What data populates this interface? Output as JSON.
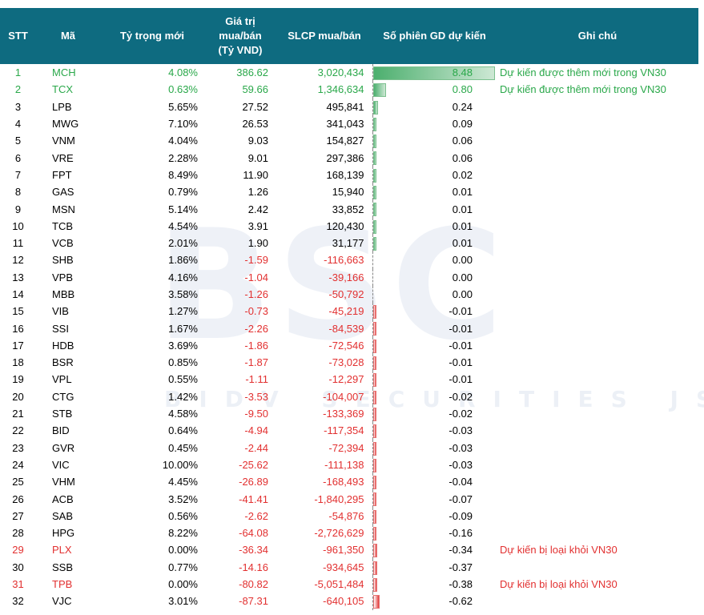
{
  "watermark": {
    "logo": "BSC",
    "sub": "BIDV SECURITIES JSC"
  },
  "headers": {
    "stt": "STT",
    "ma": "Mã",
    "ty_trong": "Tỷ trọng mới",
    "gia_tri_1": "Giá trị",
    "gia_tri_2": "mua/bán",
    "gia_tri_3": "(Tỷ VND)",
    "slcp": "SLCP mua/bán",
    "so_phien": "Số phiên GD dự kiến",
    "ghi_chu": "Ghi chú"
  },
  "colors": {
    "header_bg": "#0e6b80",
    "added": "#2aa84a",
    "removed": "#e23030",
    "positive_bar": "#4caf6e",
    "negative_bar": "#e23b3b"
  },
  "rows": [
    {
      "stt": "1",
      "ma": "MCH",
      "ty_trong": "4.08%",
      "gia_tri": "386.62",
      "slcp": "3,020,434",
      "so_phien": "8.48",
      "so_phien_num": 8.48,
      "ghi_chu": "Dự kiến được thêm mới trong VN30",
      "status": "added"
    },
    {
      "stt": "2",
      "ma": "TCX",
      "ty_trong": "0.63%",
      "gia_tri": "59.66",
      "slcp": "1,346,634",
      "so_phien": "0.80",
      "so_phien_num": 0.8,
      "ghi_chu": "Dự kiến được thêm mới trong VN30",
      "status": "added"
    },
    {
      "stt": "3",
      "ma": "LPB",
      "ty_trong": "5.65%",
      "gia_tri": "27.52",
      "slcp": "495,841",
      "so_phien": "0.24",
      "so_phien_num": 0.24,
      "ghi_chu": "",
      "status": ""
    },
    {
      "stt": "4",
      "ma": "MWG",
      "ty_trong": "7.10%",
      "gia_tri": "26.53",
      "slcp": "341,043",
      "so_phien": "0.09",
      "so_phien_num": 0.09,
      "ghi_chu": "",
      "status": ""
    },
    {
      "stt": "5",
      "ma": "VNM",
      "ty_trong": "4.04%",
      "gia_tri": "9.03",
      "slcp": "154,827",
      "so_phien": "0.06",
      "so_phien_num": 0.06,
      "ghi_chu": "",
      "status": ""
    },
    {
      "stt": "6",
      "ma": "VRE",
      "ty_trong": "2.28%",
      "gia_tri": "9.01",
      "slcp": "297,386",
      "so_phien": "0.06",
      "so_phien_num": 0.06,
      "ghi_chu": "",
      "status": ""
    },
    {
      "stt": "7",
      "ma": "FPT",
      "ty_trong": "8.49%",
      "gia_tri": "11.90",
      "slcp": "168,139",
      "so_phien": "0.02",
      "so_phien_num": 0.02,
      "ghi_chu": "",
      "status": ""
    },
    {
      "stt": "8",
      "ma": "GAS",
      "ty_trong": "0.79%",
      "gia_tri": "1.26",
      "slcp": "15,940",
      "so_phien": "0.01",
      "so_phien_num": 0.01,
      "ghi_chu": "",
      "status": ""
    },
    {
      "stt": "9",
      "ma": "MSN",
      "ty_trong": "5.14%",
      "gia_tri": "2.42",
      "slcp": "33,852",
      "so_phien": "0.01",
      "so_phien_num": 0.01,
      "ghi_chu": "",
      "status": ""
    },
    {
      "stt": "10",
      "ma": "TCB",
      "ty_trong": "4.54%",
      "gia_tri": "3.91",
      "slcp": "120,430",
      "so_phien": "0.01",
      "so_phien_num": 0.01,
      "ghi_chu": "",
      "status": ""
    },
    {
      "stt": "11",
      "ma": "VCB",
      "ty_trong": "2.01%",
      "gia_tri": "1.90",
      "slcp": "31,177",
      "so_phien": "0.01",
      "so_phien_num": 0.01,
      "ghi_chu": "",
      "status": ""
    },
    {
      "stt": "12",
      "ma": "SHB",
      "ty_trong": "1.86%",
      "gia_tri": "-1.59",
      "slcp": "-116,663",
      "so_phien": "0.00",
      "so_phien_num": 0.0,
      "ghi_chu": "",
      "status": ""
    },
    {
      "stt": "13",
      "ma": "VPB",
      "ty_trong": "4.16%",
      "gia_tri": "-1.04",
      "slcp": "-39,166",
      "so_phien": "0.00",
      "so_phien_num": 0.0,
      "ghi_chu": "",
      "status": ""
    },
    {
      "stt": "14",
      "ma": "MBB",
      "ty_trong": "3.58%",
      "gia_tri": "-1.26",
      "slcp": "-50,792",
      "so_phien": "0.00",
      "so_phien_num": 0.0,
      "ghi_chu": "",
      "status": ""
    },
    {
      "stt": "15",
      "ma": "VIB",
      "ty_trong": "1.27%",
      "gia_tri": "-0.73",
      "slcp": "-45,219",
      "so_phien": "-0.01",
      "so_phien_num": -0.01,
      "ghi_chu": "",
      "status": ""
    },
    {
      "stt": "16",
      "ma": "SSI",
      "ty_trong": "1.67%",
      "gia_tri": "-2.26",
      "slcp": "-84,539",
      "so_phien": "-0.01",
      "so_phien_num": -0.01,
      "ghi_chu": "",
      "status": ""
    },
    {
      "stt": "17",
      "ma": "HDB",
      "ty_trong": "3.69%",
      "gia_tri": "-1.86",
      "slcp": "-72,546",
      "so_phien": "-0.01",
      "so_phien_num": -0.01,
      "ghi_chu": "",
      "status": ""
    },
    {
      "stt": "18",
      "ma": "BSR",
      "ty_trong": "0.85%",
      "gia_tri": "-1.87",
      "slcp": "-73,028",
      "so_phien": "-0.01",
      "so_phien_num": -0.01,
      "ghi_chu": "",
      "status": ""
    },
    {
      "stt": "19",
      "ma": "VPL",
      "ty_trong": "0.55%",
      "gia_tri": "-1.11",
      "slcp": "-12,297",
      "so_phien": "-0.01",
      "so_phien_num": -0.01,
      "ghi_chu": "",
      "status": ""
    },
    {
      "stt": "20",
      "ma": "CTG",
      "ty_trong": "1.42%",
      "gia_tri": "-3.53",
      "slcp": "-104,007",
      "so_phien": "-0.02",
      "so_phien_num": -0.02,
      "ghi_chu": "",
      "status": ""
    },
    {
      "stt": "21",
      "ma": "STB",
      "ty_trong": "4.58%",
      "gia_tri": "-9.50",
      "slcp": "-133,369",
      "so_phien": "-0.02",
      "so_phien_num": -0.02,
      "ghi_chu": "",
      "status": ""
    },
    {
      "stt": "22",
      "ma": "BID",
      "ty_trong": "0.64%",
      "gia_tri": "-4.94",
      "slcp": "-117,354",
      "so_phien": "-0.03",
      "so_phien_num": -0.03,
      "ghi_chu": "",
      "status": ""
    },
    {
      "stt": "23",
      "ma": "GVR",
      "ty_trong": "0.45%",
      "gia_tri": "-2.44",
      "slcp": "-72,394",
      "so_phien": "-0.03",
      "so_phien_num": -0.03,
      "ghi_chu": "",
      "status": ""
    },
    {
      "stt": "24",
      "ma": "VIC",
      "ty_trong": "10.00%",
      "gia_tri": "-25.62",
      "slcp": "-111,138",
      "so_phien": "-0.03",
      "so_phien_num": -0.03,
      "ghi_chu": "",
      "status": ""
    },
    {
      "stt": "25",
      "ma": "VHM",
      "ty_trong": "4.45%",
      "gia_tri": "-26.89",
      "slcp": "-168,493",
      "so_phien": "-0.04",
      "so_phien_num": -0.04,
      "ghi_chu": "",
      "status": ""
    },
    {
      "stt": "26",
      "ma": "ACB",
      "ty_trong": "3.52%",
      "gia_tri": "-41.41",
      "slcp": "-1,840,295",
      "so_phien": "-0.07",
      "so_phien_num": -0.07,
      "ghi_chu": "",
      "status": ""
    },
    {
      "stt": "27",
      "ma": "SAB",
      "ty_trong": "0.56%",
      "gia_tri": "-2.62",
      "slcp": "-54,876",
      "so_phien": "-0.09",
      "so_phien_num": -0.09,
      "ghi_chu": "",
      "status": ""
    },
    {
      "stt": "28",
      "ma": "HPG",
      "ty_trong": "8.22%",
      "gia_tri": "-64.08",
      "slcp": "-2,726,629",
      "so_phien": "-0.16",
      "so_phien_num": -0.16,
      "ghi_chu": "",
      "status": ""
    },
    {
      "stt": "29",
      "ma": "PLX",
      "ty_trong": "0.00%",
      "gia_tri": "-36.34",
      "slcp": "-961,350",
      "so_phien": "-0.34",
      "so_phien_num": -0.34,
      "ghi_chu": "Dự kiến bị loại khỏi VN30",
      "status": "removed"
    },
    {
      "stt": "30",
      "ma": "SSB",
      "ty_trong": "0.77%",
      "gia_tri": "-14.16",
      "slcp": "-934,645",
      "so_phien": "-0.37",
      "so_phien_num": -0.37,
      "ghi_chu": "",
      "status": ""
    },
    {
      "stt": "31",
      "ma": "TPB",
      "ty_trong": "0.00%",
      "gia_tri": "-80.82",
      "slcp": "-5,051,484",
      "so_phien": "-0.38",
      "so_phien_num": -0.38,
      "ghi_chu": "Dự kiến bị loại khỏi VN30",
      "status": "removed"
    },
    {
      "stt": "32",
      "ma": "VJC",
      "ty_trong": "3.01%",
      "gia_tri": "-87.31",
      "slcp": "-640,105",
      "so_phien": "-0.62",
      "so_phien_num": -0.62,
      "ghi_chu": "",
      "status": ""
    }
  ]
}
